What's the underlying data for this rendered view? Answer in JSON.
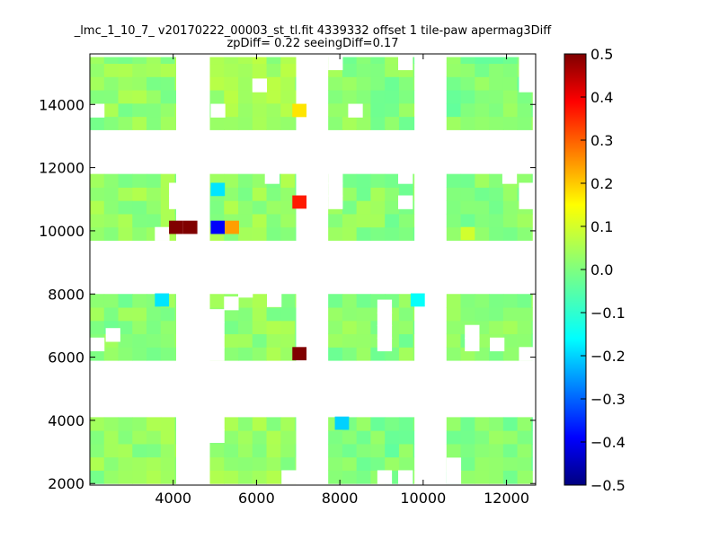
{
  "chart_data": {
    "type": "heatmap",
    "title": "_lmc_1_10_7_ v20170222_00003_st_tl.fit 4339332 offset 1 tile-paw apermag3Diff",
    "subtitle": "zpDiff= 0.22 seeingDiff=0.17",
    "xlim": [
      2000,
      12700
    ],
    "ylim": [
      1950,
      15600
    ],
    "xticks": [
      4000,
      6000,
      8000,
      10000,
      12000
    ],
    "yticks": [
      2000,
      4000,
      6000,
      8000,
      10000,
      12000,
      14000
    ],
    "colorbar": {
      "colormap": "jet",
      "range": [
        -0.5,
        0.5
      ],
      "ticks": [
        "0.5",
        "0.4",
        "0.3",
        "0.2",
        "0.1",
        "0.0",
        "−0.1",
        "−0.2",
        "−0.3",
        "−0.4",
        "−0.5"
      ]
    },
    "cell_size": [
      340,
      420
    ],
    "tiles": [
      {
        "x": [
          2000,
          4060
        ],
        "y": [
          2000,
          4100
        ],
        "value": 0.02
      },
      {
        "x": [
          2000,
          4060
        ],
        "y": [
          5900,
          8000
        ],
        "value": 0.01
      },
      {
        "x": [
          2000,
          4060
        ],
        "y": [
          9700,
          11800
        ],
        "value": 0.02
      },
      {
        "x": [
          2000,
          4060
        ],
        "y": [
          13200,
          15500
        ],
        "value": 0.02
      },
      {
        "x": [
          4880,
          6940
        ],
        "y": [
          2000,
          4100
        ],
        "value": 0.02
      },
      {
        "x": [
          4880,
          6940
        ],
        "y": [
          5900,
          8000
        ],
        "value": 0.02
      },
      {
        "x": [
          4880,
          6940
        ],
        "y": [
          9700,
          11800
        ],
        "value": 0.02
      },
      {
        "x": [
          4880,
          6940
        ],
        "y": [
          13200,
          15500
        ],
        "value": 0.03
      },
      {
        "x": [
          7720,
          9780
        ],
        "y": [
          2000,
          4100
        ],
        "value": 0.0
      },
      {
        "x": [
          7720,
          9780
        ],
        "y": [
          5900,
          8000
        ],
        "value": 0.01
      },
      {
        "x": [
          7720,
          9780
        ],
        "y": [
          9700,
          11800
        ],
        "value": 0.01
      },
      {
        "x": [
          7720,
          9780
        ],
        "y": [
          13200,
          15500
        ],
        "value": 0.01
      },
      {
        "x": [
          10560,
          12620
        ],
        "y": [
          2000,
          4100
        ],
        "value": 0.0
      },
      {
        "x": [
          10560,
          12620
        ],
        "y": [
          5900,
          8000
        ],
        "value": 0.01
      },
      {
        "x": [
          10560,
          12620
        ],
        "y": [
          9700,
          11800
        ],
        "value": 0.01
      },
      {
        "x": [
          10560,
          12620
        ],
        "y": [
          13200,
          15500
        ],
        "value": 0.0
      }
    ],
    "highlight_cells": [
      {
        "x": 3900,
        "y": 9900,
        "value": 0.5
      },
      {
        "x": 4240,
        "y": 9900,
        "value": 0.5
      },
      {
        "x": 4900,
        "y": 9900,
        "value": -0.38
      },
      {
        "x": 5240,
        "y": 9900,
        "value": 0.22
      },
      {
        "x": 4900,
        "y": 11100,
        "value": -0.15
      },
      {
        "x": 6860,
        "y": 10700,
        "value": 0.35
      },
      {
        "x": 6860,
        "y": 5900,
        "value": 0.5
      },
      {
        "x": 6860,
        "y": 13600,
        "value": 0.15
      },
      {
        "x": 3560,
        "y": 7600,
        "value": -0.15
      },
      {
        "x": 9700,
        "y": 7600,
        "value": -0.12
      },
      {
        "x": 7880,
        "y": 3700,
        "value": -0.17
      },
      {
        "x": 10900,
        "y": 9700,
        "value": 0.08
      }
    ],
    "empty_cells": [
      {
        "x": 2000,
        "y": 13600
      },
      {
        "x": 3900,
        "y": 12300
      },
      {
        "x": 2000,
        "y": 6200
      },
      {
        "x": 2380,
        "y": 6500
      },
      {
        "x": 3900,
        "y": 11100
      },
      {
        "x": 3900,
        "y": 10700
      },
      {
        "x": 3560,
        "y": 9700
      },
      {
        "x": 4900,
        "y": 13600
      },
      {
        "x": 5900,
        "y": 14400
      },
      {
        "x": 6200,
        "y": 11500
      },
      {
        "x": 4880,
        "y": 5900
      },
      {
        "x": 4880,
        "y": 6300
      },
      {
        "x": 4880,
        "y": 6700
      },
      {
        "x": 4880,
        "y": 7100
      },
      {
        "x": 5220,
        "y": 7500
      },
      {
        "x": 5560,
        "y": 7900
      },
      {
        "x": 6250,
        "y": 7600
      },
      {
        "x": 4880,
        "y": 3700
      },
      {
        "x": 4880,
        "y": 3300
      },
      {
        "x": 6600,
        "y": 2000
      },
      {
        "x": 8900,
        "y": 7000
      },
      {
        "x": 8900,
        "y": 6600
      },
      {
        "x": 8900,
        "y": 6200
      },
      {
        "x": 8900,
        "y": 7400
      },
      {
        "x": 9400,
        "y": 11500
      },
      {
        "x": 7720,
        "y": 11500
      },
      {
        "x": 7720,
        "y": 11100
      },
      {
        "x": 7720,
        "y": 10700
      },
      {
        "x": 9400,
        "y": 10700
      },
      {
        "x": 7720,
        "y": 15100
      },
      {
        "x": 8200,
        "y": 13600
      },
      {
        "x": 9400,
        "y": 15100
      },
      {
        "x": 9400,
        "y": 2000
      },
      {
        "x": 8900,
        "y": 2000
      },
      {
        "x": 10560,
        "y": 2000
      },
      {
        "x": 10560,
        "y": 2400
      },
      {
        "x": 11000,
        "y": 6200
      },
      {
        "x": 11000,
        "y": 6600
      },
      {
        "x": 11600,
        "y": 6200
      },
      {
        "x": 12300,
        "y": 5900
      },
      {
        "x": 11900,
        "y": 11500
      },
      {
        "x": 12300,
        "y": 11100
      },
      {
        "x": 12300,
        "y": 10700
      },
      {
        "x": 12300,
        "y": 14400
      },
      {
        "x": 12300,
        "y": 14800
      },
      {
        "x": 12300,
        "y": 15100
      }
    ]
  }
}
